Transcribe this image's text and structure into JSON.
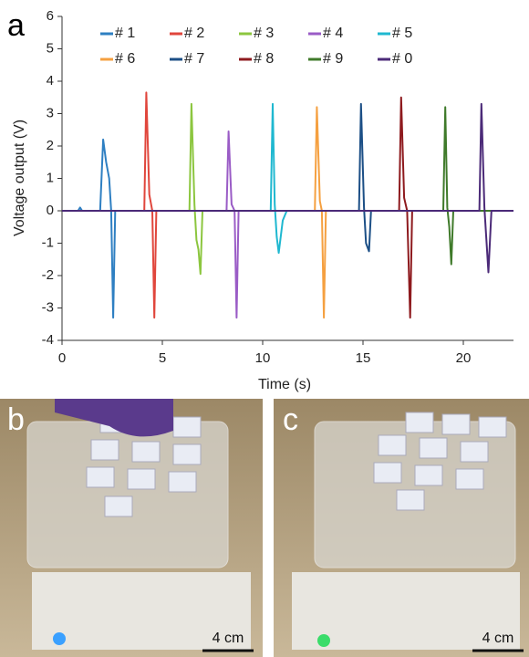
{
  "chart_data": {
    "type": "line",
    "panel_label": "a",
    "xlabel": "Time (s)",
    "ylabel": "Voltage output (V)",
    "xlim": [
      0,
      22.5
    ],
    "ylim": [
      -4,
      6
    ],
    "xticks": [
      0,
      5,
      10,
      15,
      20
    ],
    "yticks": [
      -4,
      -3,
      -2,
      -1,
      0,
      1,
      2,
      3,
      4,
      5,
      6
    ],
    "grid": false,
    "legend": "top",
    "series": [
      {
        "name": "# 1",
        "color": "#2e7fc2",
        "x": [
          0,
          0.8,
          0.9,
          1.0,
          1.9,
          2.05,
          2.2,
          2.35,
          2.45,
          2.55,
          2.65,
          22.5
        ],
        "values": [
          0,
          0,
          0.1,
          0,
          0,
          2.2,
          1.5,
          1.0,
          0,
          -3.3,
          0,
          0
        ]
      },
      {
        "name": "# 2",
        "color": "#e0463c",
        "x": [
          0,
          4.1,
          4.2,
          4.35,
          4.5,
          4.6,
          4.7,
          22.5
        ],
        "values": [
          0,
          0,
          3.65,
          0.5,
          0,
          -3.3,
          0,
          0
        ]
      },
      {
        "name": "# 3",
        "color": "#8cc63f",
        "x": [
          0,
          6.35,
          6.45,
          6.6,
          6.7,
          6.8,
          6.9,
          7.0,
          22.5
        ],
        "values": [
          0,
          0,
          3.3,
          0.2,
          -0.9,
          -1.2,
          -1.95,
          0,
          0
        ]
      },
      {
        "name": "# 4",
        "color": "#9a5cc6",
        "x": [
          0,
          8.2,
          8.3,
          8.45,
          8.6,
          8.7,
          8.8,
          22.5
        ],
        "values": [
          0,
          0,
          2.45,
          0.2,
          0,
          -3.3,
          0,
          0
        ]
      },
      {
        "name": "# 5",
        "color": "#1fb8d0",
        "x": [
          0,
          10.4,
          10.5,
          10.6,
          10.7,
          10.8,
          11.0,
          11.2,
          22.5
        ],
        "values": [
          0,
          0,
          3.3,
          0.2,
          -0.8,
          -1.3,
          -0.3,
          0,
          0
        ]
      },
      {
        "name": "# 6",
        "color": "#f5a040",
        "x": [
          0,
          12.6,
          12.7,
          12.85,
          12.95,
          13.05,
          13.15,
          22.5
        ],
        "values": [
          0,
          0,
          3.2,
          0.3,
          0,
          -3.3,
          0,
          0
        ]
      },
      {
        "name": "# 7",
        "color": "#1c4f86",
        "x": [
          0,
          14.8,
          14.9,
          15.05,
          15.15,
          15.3,
          15.4,
          22.5
        ],
        "values": [
          0,
          0,
          3.3,
          0.1,
          -1.0,
          -1.25,
          0,
          0
        ]
      },
      {
        "name": "# 8",
        "color": "#8e1a1e",
        "x": [
          0,
          16.8,
          16.9,
          17.05,
          17.2,
          17.35,
          17.45,
          22.5
        ],
        "values": [
          0,
          0,
          3.5,
          0.4,
          0,
          -3.3,
          0,
          0
        ]
      },
      {
        "name": "# 9",
        "color": "#3f7a2a",
        "x": [
          0,
          19.0,
          19.1,
          19.2,
          19.3,
          19.4,
          19.5,
          22.5
        ],
        "values": [
          0,
          0,
          3.2,
          0.1,
          -0.5,
          -1.65,
          0,
          0
        ]
      },
      {
        "name": "# 0",
        "color": "#4b2a78",
        "x": [
          0,
          20.8,
          20.9,
          21.05,
          21.15,
          21.25,
          21.4,
          22.5
        ],
        "values": [
          0,
          0,
          3.3,
          0.1,
          -0.9,
          -1.9,
          0,
          0
        ]
      }
    ]
  },
  "photos": [
    {
      "label": "b",
      "scale": "4 cm"
    },
    {
      "label": "c",
      "scale": "4 cm"
    }
  ]
}
